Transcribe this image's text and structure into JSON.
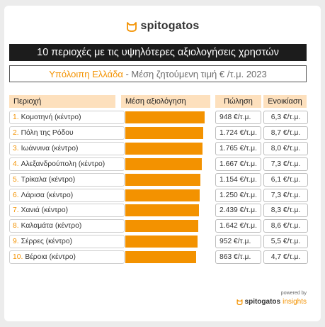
{
  "brand": {
    "name": "spitogatos",
    "powered_by": "powered by",
    "footer_name": "spitogatos",
    "footer_suffix": "insights"
  },
  "title": "10 περιοχές με τις υψηλότερες αξιολογήσεις χρηστών",
  "subtitle": {
    "emphasis": "Υπόλοιπη Ελλάδα",
    "rest": " - Μέση ζητούμενη τιμή € /τ.μ. 2023"
  },
  "headers": {
    "region": "Περιοχή",
    "avg": "Μέση αξιολόγηση",
    "sale": "Πώληση",
    "rent": "Ενοικίαση"
  },
  "colors": {
    "accent": "#f39200",
    "header_bg": "#fde0bd",
    "title_bg": "#1c1c1c"
  },
  "chart_data": {
    "type": "bar",
    "orientation": "horizontal",
    "categories": [
      "Κομοτηνή (κέντρο)",
      "Πόλη της Ρόδου",
      "Ιωάννινα (κέντρο)",
      "Αλεξανδρούπολη (κέντρο)",
      "Τρίκαλα (κέντρο)",
      "Λάρισα (κέντρο)",
      "Χανιά (κέντρο)",
      "Καλαμάτα (κέντρο)",
      "Σέρρες (κέντρο)",
      "Βέροια (κέντρο)"
    ],
    "rank_labels": [
      "1.",
      "2.",
      "3.",
      "4.",
      "5.",
      "6.",
      "7.",
      "8.",
      "9.",
      "10."
    ],
    "values": [
      1.0,
      0.985,
      0.975,
      0.96,
      0.95,
      0.94,
      0.93,
      0.92,
      0.91,
      0.895
    ],
    "value_note": "relative bar lengths; no numeric scale printed",
    "sale_labels": [
      "948 €/τ.μ.",
      "1.724 €/τ.μ.",
      "1.765 €/τ.μ.",
      "1.667 €/τ.μ.",
      "1.154 €/τ.μ.",
      "1.250 €/τ.μ.",
      "2.439 €/τ.μ.",
      "1.642 €/τ.μ.",
      "952 €/τ.μ.",
      "863 €/τ.μ."
    ],
    "rent_labels": [
      "6,3 €/τ.μ.",
      "8,7 €/τ.μ.",
      "8,0 €/τ.μ.",
      "7,3 €/τ.μ.",
      "6,1 €/τ.μ.",
      "7,3 €/τ.μ.",
      "8,3 €/τ.μ.",
      "8,6 €/τ.μ.",
      "5,5 €/τ.μ.",
      "4,7 €/τ.μ."
    ]
  }
}
